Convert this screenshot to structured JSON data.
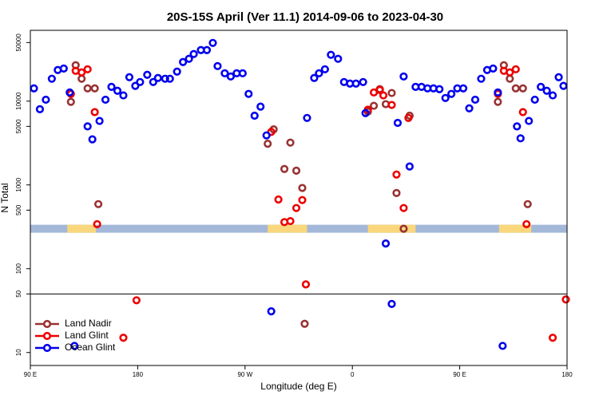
{
  "chart_data": {
    "type": "scatter",
    "title": "20S-15S April (Ver 11.1)   2014-09-06 to 2023-04-30",
    "x_label": "Longitude (deg E)",
    "y_label": "N Total",
    "log_y": true,
    "xlim": [
      90,
      540
    ],
    "xticks": [
      {
        "value": 90,
        "label": "90 E"
      },
      {
        "value": 180,
        "label": "180"
      },
      {
        "value": 270,
        "label": "90 W"
      },
      {
        "value": 360,
        "label": "0"
      },
      {
        "value": 450,
        "label": "90 E"
      },
      {
        "value": 540,
        "label": "180"
      }
    ],
    "ylim": [
      7,
      70000
    ],
    "yticks": [
      10,
      50,
      100,
      500,
      1000,
      5000,
      10000,
      50000
    ],
    "hline": 50,
    "legend": "bottom-left",
    "band": {
      "value": 300,
      "color": "#a3b8d9",
      "highlight_color": "#fad77c",
      "highlights": [
        [
          121,
          145
        ],
        [
          289,
          322
        ],
        [
          373,
          413
        ],
        [
          483,
          510
        ]
      ]
    },
    "series": [
      {
        "name": "Land Nadir",
        "color": "#993333",
        "x": [
          124,
          128,
          133,
          138,
          144,
          147,
          289,
          294,
          303,
          308,
          313,
          318,
          320,
          373,
          378,
          383,
          388,
          393,
          397,
          403,
          408,
          482,
          487,
          492,
          497,
          503,
          507
        ],
        "values": [
          9800,
          26800,
          18500,
          14200,
          14200,
          590,
          3100,
          4600,
          1550,
          3200,
          1480,
          920,
          22,
          7500,
          8800,
          13900,
          9200,
          12500,
          800,
          300,
          6700,
          9800,
          26800,
          18500,
          14200,
          14200,
          590
        ]
      },
      {
        "name": "Land Glint",
        "color": "#ee0000",
        "x": [
          124,
          128,
          133,
          138,
          144,
          146,
          168,
          179,
          292,
          298,
          303,
          308,
          313,
          318,
          321,
          373,
          378,
          383,
          386,
          393,
          397,
          403,
          407,
          482,
          487,
          492,
          497,
          503,
          506,
          528,
          539
        ],
        "values": [
          12200,
          23000,
          22000,
          24000,
          7400,
          340,
          15,
          42,
          4300,
          670,
          360,
          370,
          530,
          660,
          65,
          7900,
          12700,
          13600,
          11700,
          9000,
          1330,
          530,
          6300,
          12200,
          23000,
          22000,
          24000,
          7400,
          340,
          15,
          43
        ]
      },
      {
        "name": "Ocean Glint",
        "color": "#0000ee",
        "x": [
          93,
          98,
          103,
          108,
          113,
          118,
          123,
          127,
          138,
          142,
          148,
          153,
          158,
          163,
          168,
          173,
          178,
          182,
          188,
          193,
          197,
          203,
          207,
          213,
          218,
          223,
          227,
          233,
          238,
          243,
          247,
          253,
          258,
          263,
          268,
          273,
          278,
          283,
          288,
          292,
          322,
          328,
          332,
          337,
          342,
          348,
          353,
          358,
          363,
          369,
          371,
          388,
          393,
          398,
          403,
          408,
          413,
          418,
          423,
          428,
          433,
          438,
          443,
          448,
          453,
          458,
          463,
          468,
          473,
          478,
          482,
          486,
          498,
          501,
          508,
          513,
          518,
          523,
          528,
          533,
          537
        ],
        "values": [
          14200,
          8000,
          10400,
          18500,
          23500,
          24500,
          12700,
          12,
          5000,
          3500,
          5800,
          10400,
          14800,
          13300,
          11700,
          19300,
          15200,
          16900,
          20600,
          16900,
          18900,
          18500,
          18500,
          22500,
          29300,
          32000,
          36500,
          40700,
          40700,
          49500,
          26200,
          21500,
          19700,
          21500,
          21500,
          12200,
          6700,
          8600,
          3900,
          31,
          6300,
          18900,
          21500,
          24000,
          35700,
          32000,
          16900,
          16200,
          16200,
          16900,
          7200,
          200,
          38,
          5500,
          19700,
          1660,
          14800,
          14800,
          14200,
          14200,
          13900,
          10900,
          12200,
          14200,
          14200,
          8200,
          10400,
          18500,
          23500,
          24500,
          12700,
          12,
          5000,
          3600,
          5800,
          10400,
          14800,
          13300,
          11700,
          19300,
          15200
        ]
      }
    ]
  }
}
